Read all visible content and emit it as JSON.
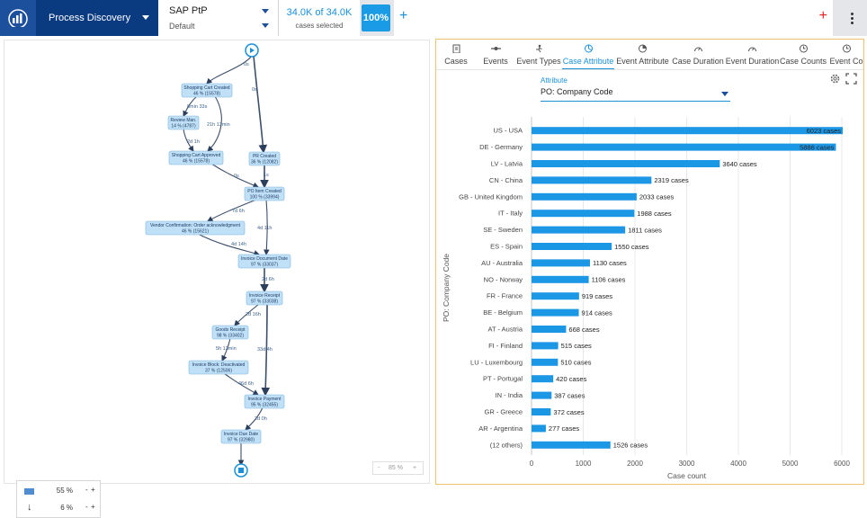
{
  "topbar": {
    "app_name": "Process Discovery",
    "process_name": "SAP PtP",
    "process_variant": "Default",
    "cases_value": "34.0K of 34.0K",
    "cases_label": "cases selected",
    "cases_percent": "100%",
    "add_label": "+",
    "add_red_label": "+"
  },
  "process_map": {
    "nodes": [
      {
        "label": "Shopping Cart Created",
        "stat": "46 % (15578)"
      },
      {
        "label": "Review Man.",
        "stat": "14 % (4787)"
      },
      {
        "label": "Shopping Cart Approved",
        "stat": "46 % (15578)"
      },
      {
        "label": "PR Created",
        "stat": "36 % (12082)"
      },
      {
        "label": "PO Item Created",
        "stat": "100 % (33994)"
      },
      {
        "label": "Vendor Confirmation: Order acknowledgment",
        "stat": "46 % (15621)"
      },
      {
        "label": "Invoice Document Date",
        "stat": "97 % (33037)"
      },
      {
        "label": "Invoice Receipt",
        "stat": "97 % (33038)"
      },
      {
        "label": "Goods Receipt",
        "stat": "98 % (33402)"
      },
      {
        "label": "Invoice Block: Deactivated",
        "stat": "37 % (12506)"
      },
      {
        "label": "Invoice Payment",
        "stat": "95 % (32455)"
      },
      {
        "label": "Invoice Due Date",
        "stat": "97 % (32980)"
      }
    ],
    "edges": [
      "0s",
      "0s",
      "8min 33s",
      "21h 13min",
      "2d 1h",
      "0s",
      "1s",
      "7d 6h",
      "4d 11h",
      "4d 14h",
      "2d 6h",
      "2d 16h",
      "5h 13min",
      "33d 4h",
      "46d 6h",
      "2d 0h"
    ],
    "legend": {
      "activities_pct": "55 %",
      "paths_pct": "6 %",
      "minus": "-",
      "plus": "+"
    },
    "zoom": {
      "minus": "-",
      "value": "85 %",
      "plus": "+"
    }
  },
  "tabs": [
    {
      "label": "Cases",
      "icon": "clipboard-icon"
    },
    {
      "label": "Events",
      "icon": "events-icon"
    },
    {
      "label": "Event Types",
      "icon": "run-icon"
    },
    {
      "label": "Case Attribute",
      "icon": "pie-icon",
      "active": true
    },
    {
      "label": "Event Attribute",
      "icon": "pie-event-icon"
    },
    {
      "label": "Case Duration",
      "icon": "gauge-icon"
    },
    {
      "label": "Event Duration",
      "icon": "gauge-icon"
    },
    {
      "label": "Case Counts",
      "icon": "clock-icon"
    },
    {
      "label": "Event Co",
      "icon": "clock-icon"
    }
  ],
  "attribute": {
    "label": "Attribute",
    "value": "PO: Company Code"
  },
  "colors": {
    "bar": "#1b97e6",
    "accent": "#1a8fd8",
    "node": "#bfe0f7"
  },
  "chart_data": {
    "type": "bar",
    "orientation": "horizontal",
    "categories": [
      "US - USA",
      "DE - Germany",
      "LV - Latvia",
      "CN - China",
      "GB - United Kingdom",
      "IT - Italy",
      "SE - Sweden",
      "ES - Spain",
      "AU - Australia",
      "NO - Norway",
      "FR - France",
      "BE - Belgium",
      "AT - Austria",
      "FI - Finland",
      "LU - Luxembourg",
      "PT - Portugal",
      "IN - India",
      "GR - Greece",
      "AR - Argentina",
      "(12 others)"
    ],
    "values": [
      6023,
      5886,
      3640,
      2319,
      2033,
      1988,
      1811,
      1550,
      1130,
      1106,
      919,
      914,
      668,
      515,
      510,
      420,
      387,
      372,
      277,
      1526
    ],
    "value_suffix": " cases",
    "xlabel": "Case count",
    "ylabel": "PO: Company Code",
    "xlim": [
      0,
      6000
    ],
    "xticks": [
      0,
      1000,
      2000,
      3000,
      4000,
      5000,
      6000
    ],
    "grid": true
  }
}
